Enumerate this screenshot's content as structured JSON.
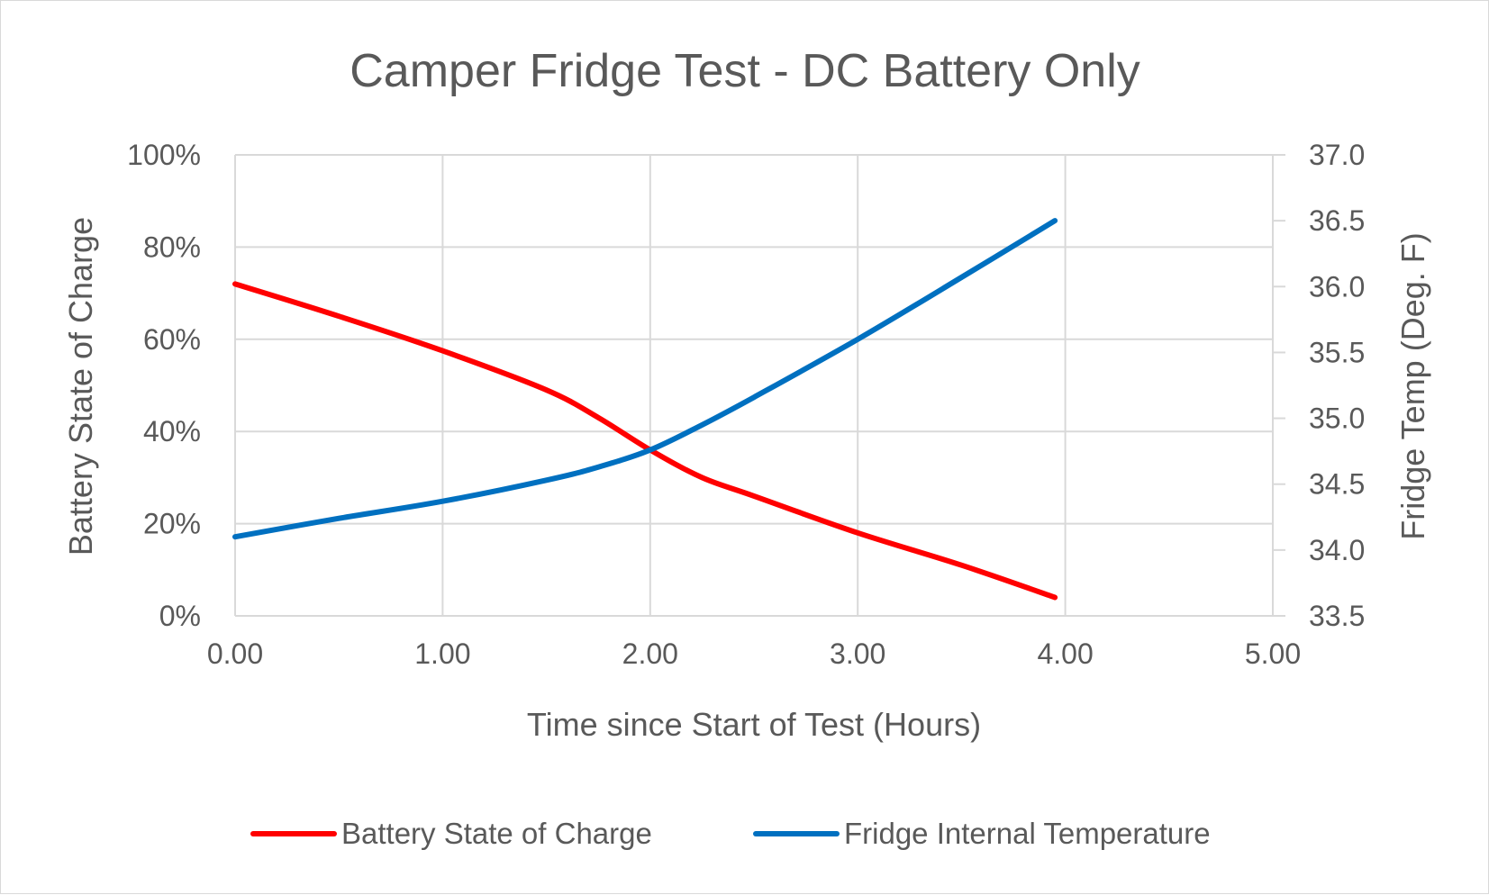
{
  "chart_data": {
    "type": "line",
    "title": "Camper Fridge Test - DC Battery Only",
    "xlabel": "Time since Start of Test (Hours)",
    "ylabel": "Battery State of Charge",
    "y2label": "Fridge Temp (Deg. F)",
    "xlim": [
      0,
      5
    ],
    "ylim": [
      0,
      1
    ],
    "y2lim": [
      33.5,
      37.0
    ],
    "x_ticks": [
      "0.00",
      "1.00",
      "2.00",
      "3.00",
      "4.00",
      "5.00"
    ],
    "x_tick_values": [
      0,
      1,
      2,
      3,
      4,
      5
    ],
    "y_ticks": [
      "0%",
      "20%",
      "40%",
      "60%",
      "80%",
      "100%"
    ],
    "y_tick_values": [
      0,
      0.2,
      0.4,
      0.6,
      0.8,
      1.0
    ],
    "y2_ticks": [
      "33.5",
      "34.0",
      "34.5",
      "35.0",
      "35.5",
      "36.0",
      "36.5",
      "37.0"
    ],
    "y2_tick_values": [
      33.5,
      34.0,
      34.5,
      35.0,
      35.5,
      36.0,
      36.5,
      37.0
    ],
    "grid": true,
    "legend_position": "bottom",
    "series": [
      {
        "name": "Battery State of Charge",
        "axis": "left",
        "color": "#ff0000",
        "x": [
          0.0,
          0.5,
          1.0,
          1.5,
          1.75,
          2.0,
          2.25,
          2.5,
          3.0,
          3.5,
          3.95
        ],
        "values": [
          0.72,
          0.65,
          0.575,
          0.49,
          0.43,
          0.36,
          0.3,
          0.26,
          0.18,
          0.11,
          0.04
        ]
      },
      {
        "name": "Fridge Internal Temperature",
        "axis": "right",
        "color": "#0070c0",
        "x": [
          0.0,
          0.5,
          1.0,
          1.5,
          1.75,
          2.0,
          2.25,
          2.5,
          3.0,
          3.5,
          3.95
        ],
        "values": [
          34.1,
          34.24,
          34.37,
          34.53,
          34.63,
          34.76,
          34.95,
          35.16,
          35.6,
          36.07,
          36.5
        ]
      }
    ]
  }
}
